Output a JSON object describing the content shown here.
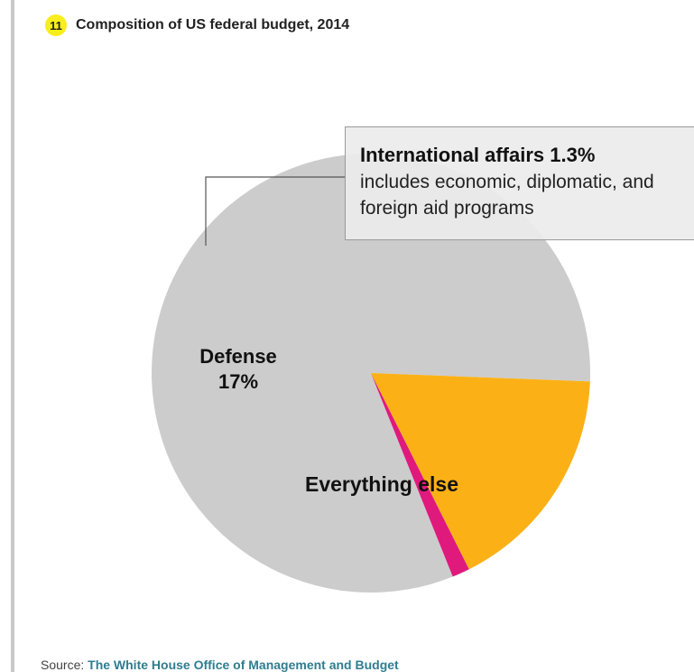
{
  "header": {
    "number": "11",
    "title": "Composition of US federal budget, 2014"
  },
  "chart_data": {
    "type": "pie",
    "title": "Composition of US federal budget, 2014",
    "slices": [
      {
        "label": "Everything else",
        "value": 81.7,
        "color": "#cccccc"
      },
      {
        "label": "International affairs",
        "value": 1.3,
        "color": "#e0197d"
      },
      {
        "label": "Defense",
        "value": 17,
        "color": "#fbb116"
      }
    ],
    "labels": {
      "defense_name": "Defense",
      "defense_value": "17%",
      "everything_else": "Everything else"
    },
    "callout": {
      "title": "International affairs 1.3%",
      "description": "includes economic, diplomatic, and foreign aid programs"
    }
  },
  "source": {
    "prefix": "Source: ",
    "name": "The White House Office of Management and Budget"
  }
}
